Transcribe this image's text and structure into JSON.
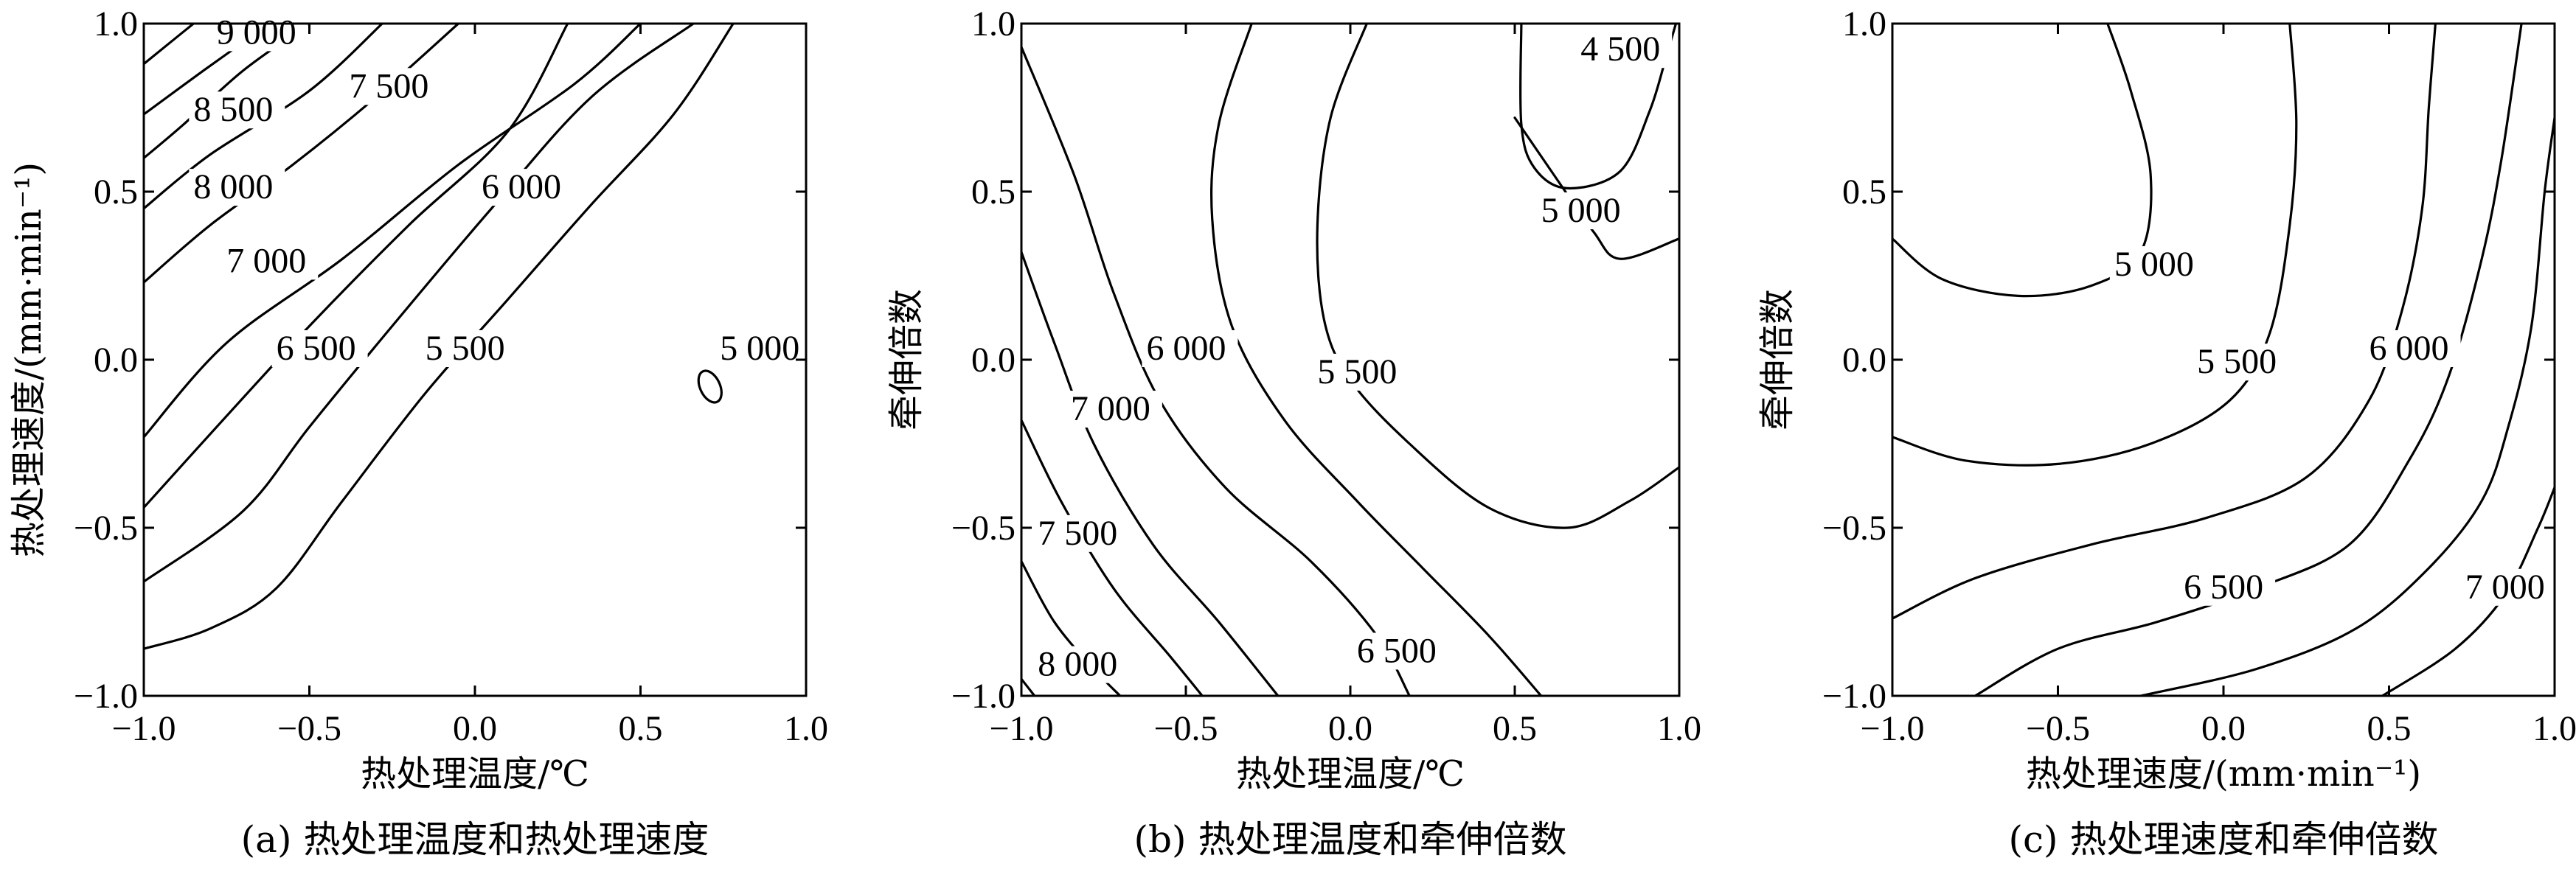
{
  "chart_data": [
    {
      "type": "contour",
      "caption": "(a) 热处理温度和热处理速度",
      "xlabel": "热处理温度/℃",
      "ylabel": "热处理速度/(mm·min⁻¹)",
      "xlim": [
        -1.0,
        1.0
      ],
      "ylim": [
        -1.0,
        1.0
      ],
      "xticks": [
        "−1.0",
        "−0.5",
        "0.0",
        "0.5",
        "1.0"
      ],
      "yticks": [
        "−1.0",
        "−0.5",
        "0.0",
        "0.5",
        "1.0"
      ],
      "contours": [
        {
          "level": "9 000",
          "label_at": [
            -0.78,
            0.94
          ],
          "points": [
            [
              -1.0,
              0.88
            ],
            [
              -0.85,
              1.0
            ]
          ]
        },
        {
          "level": "8 500",
          "label_at": [
            -0.85,
            0.71
          ],
          "points": [
            [
              -1.0,
              0.73
            ],
            [
              -0.82,
              0.86
            ],
            [
              -0.62,
              1.0
            ]
          ]
        },
        {
          "level": "7 500",
          "label_at": [
            -0.38,
            0.78
          ],
          "points": [
            [
              -1.0,
              0.45
            ],
            [
              -0.8,
              0.61
            ],
            [
              -0.5,
              0.8
            ],
            [
              -0.28,
              1.0
            ]
          ]
        },
        {
          "level": "8 000",
          "label_at": [
            -0.85,
            0.48
          ],
          "points": [
            [
              -1.0,
              0.6
            ],
            [
              -0.88,
              0.7
            ],
            [
              -0.7,
              0.86
            ],
            [
              -0.5,
              1.0
            ]
          ]
        },
        {
          "level": "7 000",
          "label_at": [
            -0.75,
            0.26
          ],
          "points": [
            [
              -1.0,
              0.23
            ],
            [
              -0.8,
              0.4
            ],
            [
              -0.55,
              0.58
            ],
            [
              -0.3,
              0.78
            ],
            [
              -0.05,
              1.0
            ]
          ]
        },
        {
          "level": "6 000",
          "label_at": [
            0.02,
            0.48
          ],
          "points": [
            [
              -1.0,
              -0.23
            ],
            [
              -0.75,
              0.05
            ],
            [
              -0.4,
              0.3
            ],
            [
              -0.05,
              0.58
            ],
            [
              0.3,
              0.82
            ],
            [
              0.5,
              1.0
            ]
          ]
        },
        {
          "level": "6 500",
          "label_at": [
            -0.6,
            0.0
          ],
          "points": [
            [
              -1.0,
              -0.44
            ],
            [
              -0.78,
              -0.2
            ],
            [
              -0.5,
              0.1
            ],
            [
              -0.2,
              0.4
            ],
            [
              0.1,
              0.68
            ],
            [
              0.28,
              1.0
            ]
          ]
        },
        {
          "level": "5 500",
          "label_at": [
            -0.15,
            0.0
          ],
          "points": [
            [
              -1.0,
              -0.66
            ],
            [
              -0.7,
              -0.45
            ],
            [
              -0.5,
              -0.2
            ],
            [
              -0.25,
              0.1
            ],
            [
              0.05,
              0.45
            ],
            [
              0.35,
              0.78
            ],
            [
              0.66,
              1.0
            ]
          ]
        },
        {
          "level": "5 000",
          "label_at": [
            0.74,
            0.0
          ],
          "points": [
            [
              -1.0,
              -0.86
            ],
            [
              -0.8,
              -0.8
            ],
            [
              -0.6,
              -0.68
            ],
            [
              -0.4,
              -0.42
            ],
            [
              -0.15,
              -0.1
            ],
            [
              0.1,
              0.18
            ],
            [
              0.35,
              0.46
            ],
            [
              0.6,
              0.73
            ],
            [
              0.78,
              1.0
            ]
          ]
        }
      ],
      "islands": [
        {
          "level": "5 000",
          "center": [
            0.71,
            -0.08
          ],
          "rx": 0.03,
          "ry": 0.05
        }
      ]
    },
    {
      "type": "contour",
      "caption": "(b) 热处理温度和牵伸倍数",
      "xlabel": "热处理温度/℃",
      "ylabel": "牵伸倍数",
      "xlim": [
        -1.0,
        1.0
      ],
      "ylim": [
        -1.0,
        1.0
      ],
      "xticks": [
        "−1.0",
        "−0.5",
        "0.0",
        "0.5",
        "1.0"
      ],
      "yticks": [
        "−1.0",
        "−0.5",
        "0.0",
        "0.5",
        "1.0"
      ],
      "contours": [
        {
          "level": "4 500",
          "label_at": [
            0.7,
            0.89
          ],
          "points": [
            [
              0.52,
              1.0
            ],
            [
              0.52,
              0.7
            ],
            [
              0.56,
              0.57
            ],
            [
              0.66,
              0.51
            ],
            [
              0.82,
              0.56
            ],
            [
              0.91,
              0.74
            ],
            [
              0.96,
              0.9
            ],
            [
              0.99,
              1.0
            ]
          ]
        },
        {
          "level": "5 000",
          "label_at": [
            0.58,
            0.41
          ],
          "points": [
            [
              0.05,
              1.0
            ],
            [
              -0.06,
              0.72
            ],
            [
              -0.1,
              0.4
            ],
            [
              -0.08,
              0.12
            ],
            [
              0.0,
              -0.06
            ],
            [
              0.18,
              -0.25
            ],
            [
              0.42,
              -0.44
            ],
            [
              0.66,
              -0.5
            ],
            [
              0.85,
              -0.42
            ],
            [
              1.0,
              -0.32
            ]
          ]
        },
        {
          "level": "5 500",
          "label_at": [
            -0.1,
            -0.07
          ],
          "points": [
            [
              -0.3,
              1.0
            ],
            [
              -0.4,
              0.7
            ],
            [
              -0.42,
              0.42
            ],
            [
              -0.36,
              0.1
            ],
            [
              -0.2,
              -0.18
            ],
            [
              0.02,
              -0.42
            ],
            [
              0.22,
              -0.62
            ],
            [
              0.42,
              -0.82
            ],
            [
              0.58,
              -1.0
            ]
          ]
        },
        {
          "level": "5 000 (inner)",
          "label_at": [
            0.58,
            0.41
          ],
          "points": [
            [
              0.5,
              0.72
            ],
            [
              0.64,
              0.52
            ],
            [
              0.74,
              0.38
            ],
            [
              0.82,
              0.3
            ],
            [
              1.0,
              0.36
            ]
          ]
        },
        {
          "level": "6 000",
          "label_at": [
            -0.62,
            0.0
          ],
          "points": [
            [
              -1.0,
              0.93
            ],
            [
              -0.84,
              0.55
            ],
            [
              -0.72,
              0.2
            ],
            [
              -0.58,
              -0.12
            ],
            [
              -0.38,
              -0.38
            ],
            [
              -0.12,
              -0.6
            ],
            [
              0.08,
              -0.82
            ],
            [
              0.18,
              -1.0
            ]
          ]
        },
        {
          "level": "7 000",
          "label_at": [
            -0.85,
            -0.18
          ],
          "points": [
            [
              -1.0,
              0.32
            ],
            [
              -0.9,
              0.05
            ],
            [
              -0.78,
              -0.25
            ],
            [
              -0.6,
              -0.55
            ],
            [
              -0.4,
              -0.78
            ],
            [
              -0.22,
              -1.0
            ]
          ]
        },
        {
          "level": "7 500",
          "label_at": [
            -0.95,
            -0.55
          ],
          "points": [
            [
              -1.0,
              -0.18
            ],
            [
              -0.88,
              -0.42
            ],
            [
              -0.72,
              -0.68
            ],
            [
              -0.55,
              -0.88
            ],
            [
              -0.45,
              -1.0
            ]
          ]
        },
        {
          "level": "8 000",
          "label_at": [
            -0.95,
            -0.94
          ],
          "points": [
            [
              -1.0,
              -0.6
            ],
            [
              -0.9,
              -0.78
            ],
            [
              -0.78,
              -0.92
            ],
            [
              -0.7,
              -1.0
            ]
          ]
        },
        {
          "level": "6 500",
          "label_at": [
            0.02,
            -0.9
          ],
          "points": [
            [
              -1.0,
              -0.95
            ],
            [
              -0.96,
              -1.0
            ]
          ]
        }
      ],
      "islands": []
    },
    {
      "type": "contour",
      "caption": "(c) 热处理速度和牵伸倍数",
      "xlabel": "热处理速度/(mm·min⁻¹)",
      "ylabel": "牵伸倍数",
      "xlim": [
        -1.0,
        1.0
      ],
      "ylim": [
        -1.0,
        1.0
      ],
      "xticks": [
        "−1.0",
        "−0.5",
        "0.0",
        "0.5",
        "1.0"
      ],
      "yticks": [
        "−1.0",
        "−0.5",
        "0.0",
        "0.5",
        "1.0"
      ],
      "contours": [
        {
          "level": "5 000",
          "label_at": [
            -0.33,
            0.25
          ],
          "points": [
            [
              -1.0,
              0.36
            ],
            [
              -0.85,
              0.24
            ],
            [
              -0.62,
              0.19
            ],
            [
              -0.4,
              0.22
            ],
            [
              -0.25,
              0.32
            ],
            [
              -0.22,
              0.55
            ],
            [
              -0.28,
              0.8
            ],
            [
              -0.35,
              1.0
            ]
          ]
        },
        {
          "level": "5 500",
          "label_at": [
            -0.08,
            -0.04
          ],
          "points": [
            [
              -1.0,
              -0.23
            ],
            [
              -0.78,
              -0.3
            ],
            [
              -0.5,
              -0.31
            ],
            [
              -0.22,
              -0.25
            ],
            [
              0.02,
              -0.12
            ],
            [
              0.14,
              0.08
            ],
            [
              0.2,
              0.4
            ],
            [
              0.22,
              0.7
            ],
            [
              0.2,
              1.0
            ]
          ]
        },
        {
          "level": "6 000",
          "label_at": [
            0.44,
            0.0
          ],
          "points": [
            [
              -1.0,
              -0.77
            ],
            [
              -0.75,
              -0.65
            ],
            [
              -0.4,
              -0.55
            ],
            [
              -0.05,
              -0.47
            ],
            [
              0.25,
              -0.35
            ],
            [
              0.44,
              -0.12
            ],
            [
              0.54,
              0.15
            ],
            [
              0.6,
              0.45
            ],
            [
              0.62,
              0.75
            ],
            [
              0.64,
              1.0
            ]
          ]
        },
        {
          "level": "6 500",
          "label_at": [
            -0.12,
            -0.71
          ],
          "points": [
            [
              -0.75,
              -1.0
            ],
            [
              -0.5,
              -0.86
            ],
            [
              -0.2,
              -0.78
            ],
            [
              0.1,
              -0.68
            ],
            [
              0.38,
              -0.55
            ],
            [
              0.56,
              -0.3
            ],
            [
              0.68,
              -0.05
            ],
            [
              0.78,
              0.3
            ],
            [
              0.84,
              0.6
            ],
            [
              0.9,
              1.0
            ]
          ]
        },
        {
          "level": "7 000",
          "label_at": [
            0.73,
            -0.71
          ],
          "points": [
            [
              -0.25,
              -1.0
            ],
            [
              0.1,
              -0.92
            ],
            [
              0.4,
              -0.8
            ],
            [
              0.62,
              -0.62
            ],
            [
              0.78,
              -0.42
            ],
            [
              0.86,
              -0.2
            ],
            [
              0.93,
              0.1
            ],
            [
              0.97,
              0.5
            ],
            [
              1.0,
              0.72
            ]
          ]
        },
        {
          "level": "7 000 (edge)",
          "label_at": [
            0.73,
            -0.71
          ],
          "points": [
            [
              0.48,
              -1.0
            ],
            [
              0.7,
              -0.86
            ],
            [
              0.85,
              -0.7
            ],
            [
              0.95,
              -0.5
            ],
            [
              1.0,
              -0.38
            ]
          ]
        }
      ],
      "islands": []
    }
  ]
}
